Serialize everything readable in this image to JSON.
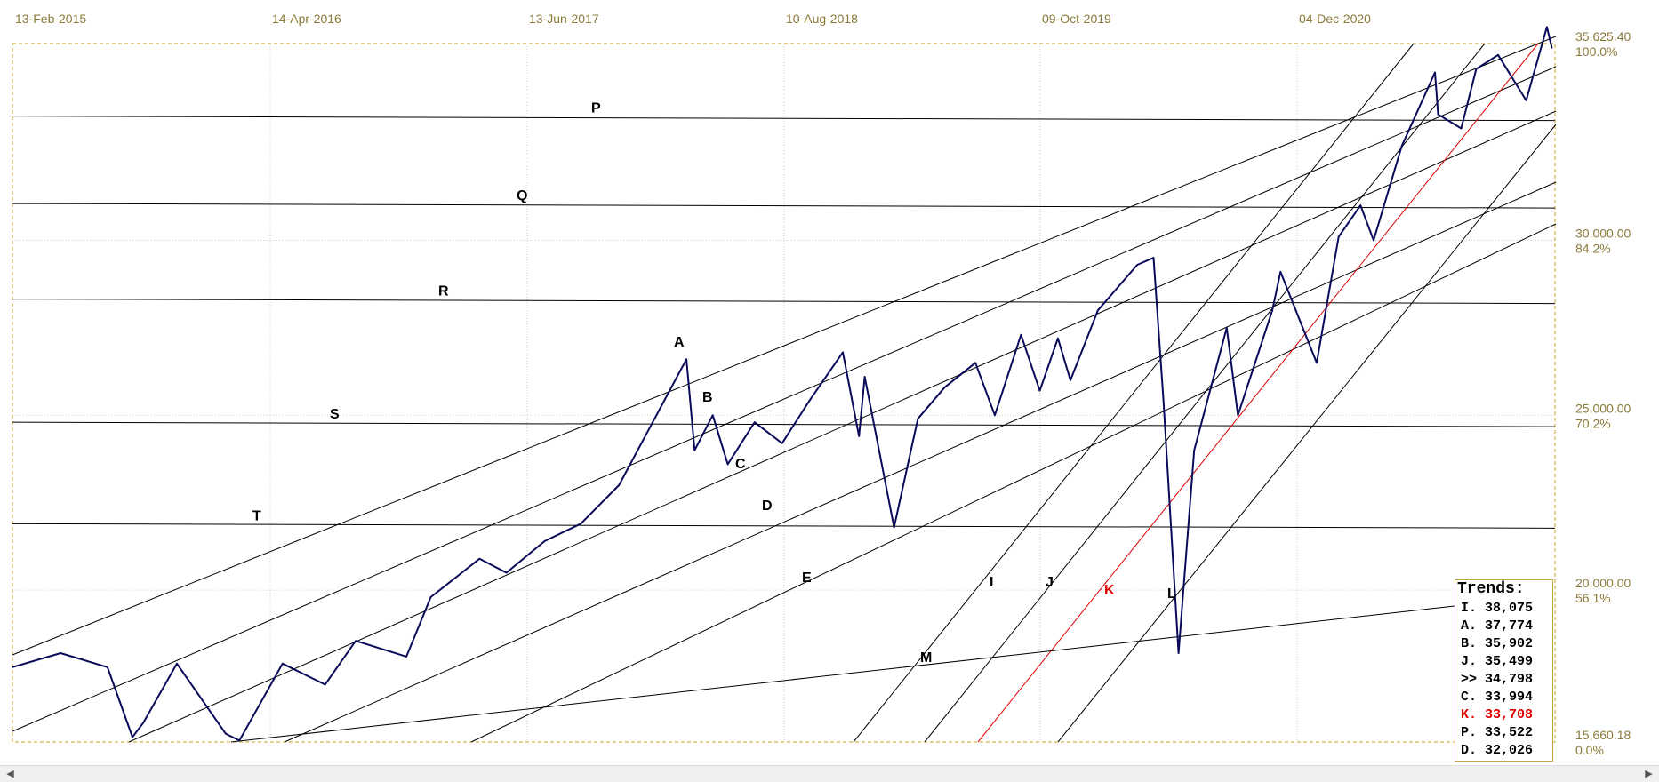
{
  "chart_data": {
    "type": "line",
    "title": "",
    "x_axis": {
      "tick_labels": [
        "13-Feb-2015",
        "14-Apr-2016",
        "13-Jun-2017",
        "10-Aug-2018",
        "09-Oct-2019",
        "04-Dec-2020"
      ],
      "range": [
        "2015-02-13",
        "2021-11-15"
      ]
    },
    "y_axis": {
      "range": [
        15660.18,
        35625.4
      ],
      "labels": [
        {
          "value": "35,625.40",
          "pct": "100.0%"
        },
        {
          "value": "30,000.00",
          "pct": "84.2%"
        },
        {
          "value": "25,000.00",
          "pct": "70.2%"
        },
        {
          "value": "20,000.00",
          "pct": "56.1%"
        },
        {
          "value": "15,660.18",
          "pct": "0.0%"
        }
      ]
    },
    "grid": true,
    "series": [
      {
        "color": "#0a0a5a",
        "x": [
          "2015-02-13",
          "2015-05-01",
          "2015-07-15",
          "2015-08-24",
          "2015-09-10",
          "2015-11-03",
          "2016-01-20",
          "2016-02-11",
          "2016-04-20",
          "2016-06-27",
          "2016-08-15",
          "2016-11-04",
          "2016-12-13",
          "2017-03-01",
          "2017-04-13",
          "2017-06-13",
          "2017-08-10",
          "2017-10-10",
          "2018-01-26",
          "2018-02-08",
          "2018-03-09",
          "2018-04-02",
          "2018-05-15",
          "2018-06-28",
          "2018-08-10",
          "2018-10-03",
          "2018-10-29",
          "2018-11-07",
          "2018-12-24",
          "2019-01-31",
          "2019-03-15",
          "2019-05-03",
          "2019-06-03",
          "2019-07-15",
          "2019-08-14",
          "2019-09-12",
          "2019-10-02",
          "2019-11-15",
          "2020-01-17",
          "2020-02-12",
          "2020-02-28",
          "2020-03-23",
          "2020-04-17",
          "2020-06-08",
          "2020-06-26",
          "2020-08-20",
          "2020-09-02",
          "2020-10-30",
          "2020-12-04",
          "2021-01-08",
          "2021-01-29",
          "2021-03-15",
          "2021-05-07",
          "2021-05-12",
          "2021-06-18",
          "2021-07-12",
          "2021-08-16",
          "2021-09-30",
          "2021-11-02",
          "2021-11-10"
        ],
        "y": [
          17800,
          18200,
          17800,
          15800,
          16200,
          17900,
          15900,
          15700,
          17900,
          17300,
          18550,
          18100,
          19800,
          20900,
          20500,
          21400,
          21900,
          23000,
          26600,
          24000,
          25000,
          23600,
          24800,
          24200,
          25400,
          26800,
          24400,
          26100,
          21800,
          24900,
          25800,
          26500,
          25000,
          27300,
          25700,
          27200,
          26000,
          28000,
          29300,
          29500,
          25400,
          18200,
          24000,
          27500,
          25000,
          28000,
          29100,
          26500,
          30100,
          31000,
          30000,
          32700,
          34800,
          33600,
          33200,
          34900,
          35300,
          34000,
          36100,
          35500
        ]
      }
    ],
    "horizontal_levels": [
      {
        "label": "P",
        "value": 33500
      },
      {
        "label": "Q",
        "value": 31000
      },
      {
        "label": "R",
        "value": 28270
      },
      {
        "label": "S",
        "value": 24750
      },
      {
        "label": "T",
        "value": 21850
      }
    ],
    "trendlines": [
      {
        "label": "A",
        "color": "#000000"
      },
      {
        "label": "B",
        "color": "#000000"
      },
      {
        "label": "C",
        "color": "#000000"
      },
      {
        "label": "D",
        "color": "#000000"
      },
      {
        "label": "E",
        "color": "#000000"
      },
      {
        "label": "I",
        "color": "#000000"
      },
      {
        "label": "J",
        "color": "#000000"
      },
      {
        "label": "K",
        "color": "#e00000"
      },
      {
        "label": "L",
        "color": "#000000"
      },
      {
        "label": "M",
        "color": "#000000"
      }
    ]
  },
  "trends_panel": {
    "title": "Trends:",
    "rows": [
      {
        "text": "I. 38,075",
        "color": "#000000"
      },
      {
        "text": "A. 37,774",
        "color": "#000000"
      },
      {
        "text": "B. 35,902",
        "color": "#000000"
      },
      {
        "text": "J. 35,499",
        "color": "#000000"
      },
      {
        "text": ">> 34,798",
        "color": "#000000"
      },
      {
        "text": "C. 33,994",
        "color": "#000000"
      },
      {
        "text": "K. 33,708",
        "color": "#e00000"
      },
      {
        "text": "P. 33,522",
        "color": "#000000"
      },
      {
        "text": "D. 32,026",
        "color": "#000000"
      }
    ]
  },
  "scrollbar": {
    "left_arrow": "◀",
    "right_arrow": "▶"
  },
  "colors": {
    "price_line": "#0a0a5a",
    "frame": "#c8a020",
    "axis_text": "#8a7a3a",
    "highlight_trend": "#e00000"
  }
}
